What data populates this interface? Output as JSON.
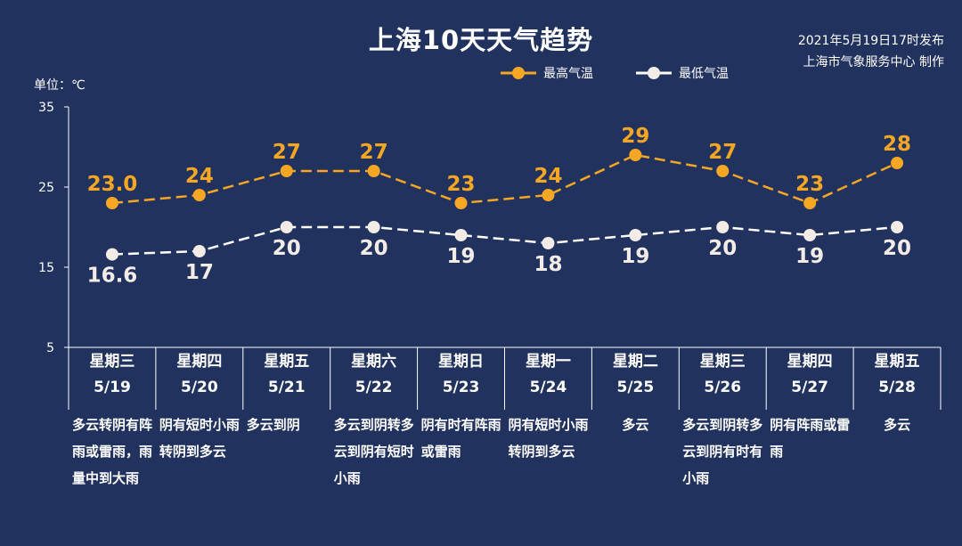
{
  "title": "上海10天天气趋势",
  "publish_date": "2021年5月19日17时发布",
  "publisher": "上海市气象服务中心 制作",
  "unit_label": "单位：℃",
  "legend": {
    "high": "最高气温",
    "low": "最低气温"
  },
  "colors": {
    "background": "#22325f",
    "high": "#f5a623",
    "low": "#ffffff",
    "axis": "#ffffff"
  },
  "chart_data": {
    "type": "line",
    "ylim": [
      5,
      35
    ],
    "yticks": [
      "5",
      "15",
      "25",
      "35"
    ],
    "ylabel": "单位：℃",
    "categories": [
      "5/19",
      "5/20",
      "5/21",
      "5/22",
      "5/23",
      "5/24",
      "5/25",
      "5/26",
      "5/27",
      "5/28"
    ],
    "series": [
      {
        "name": "最高气温",
        "values": [
          23.0,
          24,
          27,
          27,
          23,
          24,
          29,
          27,
          23,
          28
        ],
        "labels": [
          "23.0",
          "24",
          "27",
          "27",
          "23",
          "24",
          "29",
          "27",
          "23",
          "28"
        ]
      },
      {
        "name": "最低气温",
        "values": [
          16.6,
          17,
          20,
          20,
          19,
          18,
          19,
          20,
          19,
          20
        ],
        "labels": [
          "16.6",
          "17",
          "20",
          "20",
          "19",
          "18",
          "19",
          "20",
          "19",
          "20"
        ]
      }
    ]
  },
  "days": [
    {
      "weekday": "星期三",
      "date": "5/19",
      "desc": "多云转阴有阵雨或雷雨，雨量中到大雨"
    },
    {
      "weekday": "星期四",
      "date": "5/20",
      "desc": "阴有短时小雨转阴到多云"
    },
    {
      "weekday": "星期五",
      "date": "5/21",
      "desc": "多云到阴"
    },
    {
      "weekday": "星期六",
      "date": "5/22",
      "desc": "多云到阴转多云到阴有短时小雨"
    },
    {
      "weekday": "星期日",
      "date": "5/23",
      "desc": "阴有时有阵雨或雷雨"
    },
    {
      "weekday": "星期一",
      "date": "5/24",
      "desc": "阴有短时小雨转阴到多云"
    },
    {
      "weekday": "星期二",
      "date": "5/25",
      "desc": "多云"
    },
    {
      "weekday": "星期三",
      "date": "5/26",
      "desc": "多云到阴转多云到阴有时有小雨"
    },
    {
      "weekday": "星期四",
      "date": "5/27",
      "desc": "阴有阵雨或雷雨"
    },
    {
      "weekday": "星期五",
      "date": "5/28",
      "desc": "多云"
    }
  ]
}
